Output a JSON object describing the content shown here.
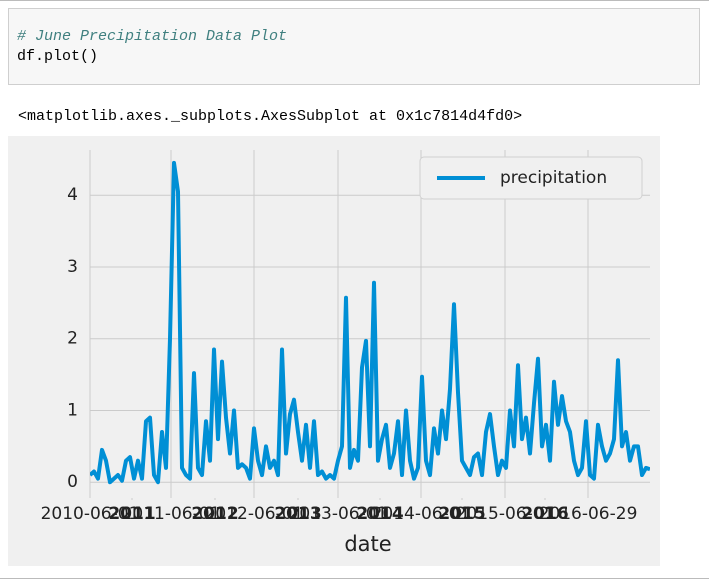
{
  "cell": {
    "code_comment": "# June Precipitation Data Plot",
    "code": "df.plot()",
    "output_text": "<matplotlib.axes._subplots.AxesSubplot at 0x1c7814d4fd0>"
  },
  "chart_data": {
    "type": "line",
    "x_label": "date",
    "legend": "upper right",
    "grid": true,
    "series": [
      {
        "name": "precipitation",
        "color": "#008fd5",
        "values": [
          0.1,
          0.15,
          0.05,
          0.45,
          0.3,
          0.0,
          0.05,
          0.1,
          0.02,
          0.3,
          0.35,
          0.05,
          0.3,
          0.05,
          0.85,
          0.9,
          0.1,
          0.0,
          0.7,
          0.2,
          2.0,
          4.45,
          4.05,
          0.2,
          0.1,
          0.05,
          1.52,
          0.2,
          0.1,
          0.85,
          0.3,
          1.85,
          0.6,
          1.68,
          0.9,
          0.4,
          1.0,
          0.2,
          0.25,
          0.2,
          0.05,
          0.75,
          0.3,
          0.1,
          0.5,
          0.2,
          0.3,
          0.1,
          1.85,
          0.4,
          0.95,
          1.15,
          0.7,
          0.3,
          0.8,
          0.2,
          0.85,
          0.1,
          0.15,
          0.05,
          0.1,
          0.05,
          0.3,
          0.5,
          2.57,
          0.2,
          0.45,
          0.3,
          1.6,
          1.97,
          0.5,
          2.78,
          0.3,
          0.6,
          0.8,
          0.2,
          0.4,
          0.85,
          0.1,
          1.0,
          0.3,
          0.05,
          0.2,
          1.47,
          0.3,
          0.1,
          0.75,
          0.4,
          1.0,
          0.6,
          1.3,
          2.48,
          1.25,
          0.3,
          0.2,
          0.1,
          0.35,
          0.4,
          0.1,
          0.7,
          0.95,
          0.5,
          0.1,
          0.3,
          0.2,
          1.0,
          0.5,
          1.63,
          0.6,
          0.9,
          0.4,
          1.1,
          1.72,
          0.5,
          0.8,
          0.3,
          1.4,
          0.8,
          1.2,
          0.85,
          0.7,
          0.3,
          0.1,
          0.2,
          0.85,
          0.1,
          0.05,
          0.8,
          0.5,
          0.3,
          0.4,
          0.6,
          1.7,
          0.5,
          0.7,
          0.3,
          0.5,
          0.5,
          0.1,
          0.2,
          0.18
        ]
      }
    ],
    "xlim": [
      0,
      140
    ],
    "xticks": [
      {
        "value": 0,
        "label": "2010-06-01"
      },
      {
        "value": 20.25,
        "label": "2011-06-01"
      },
      {
        "value": 41,
        "label": "2012-06-01"
      },
      {
        "value": 62,
        "label": "2013-06-01"
      },
      {
        "value": 82.75,
        "label": "2014-06-01"
      },
      {
        "value": 103.75,
        "label": "2015-06-01"
      },
      {
        "value": 124.5,
        "label": "2016-06-29"
      }
    ],
    "xminorticks": [
      {
        "value": 10.5,
        "label": "2011"
      },
      {
        "value": 31.25,
        "label": "2012"
      },
      {
        "value": 52,
        "label": "2013"
      },
      {
        "value": 72.5,
        "label": "2014"
      },
      {
        "value": 93,
        "label": "2015"
      },
      {
        "value": 113.75,
        "label": "2016"
      }
    ],
    "ylim": [
      -0.22,
      4.63
    ],
    "yticks": [
      0,
      1,
      2,
      3,
      4
    ]
  }
}
